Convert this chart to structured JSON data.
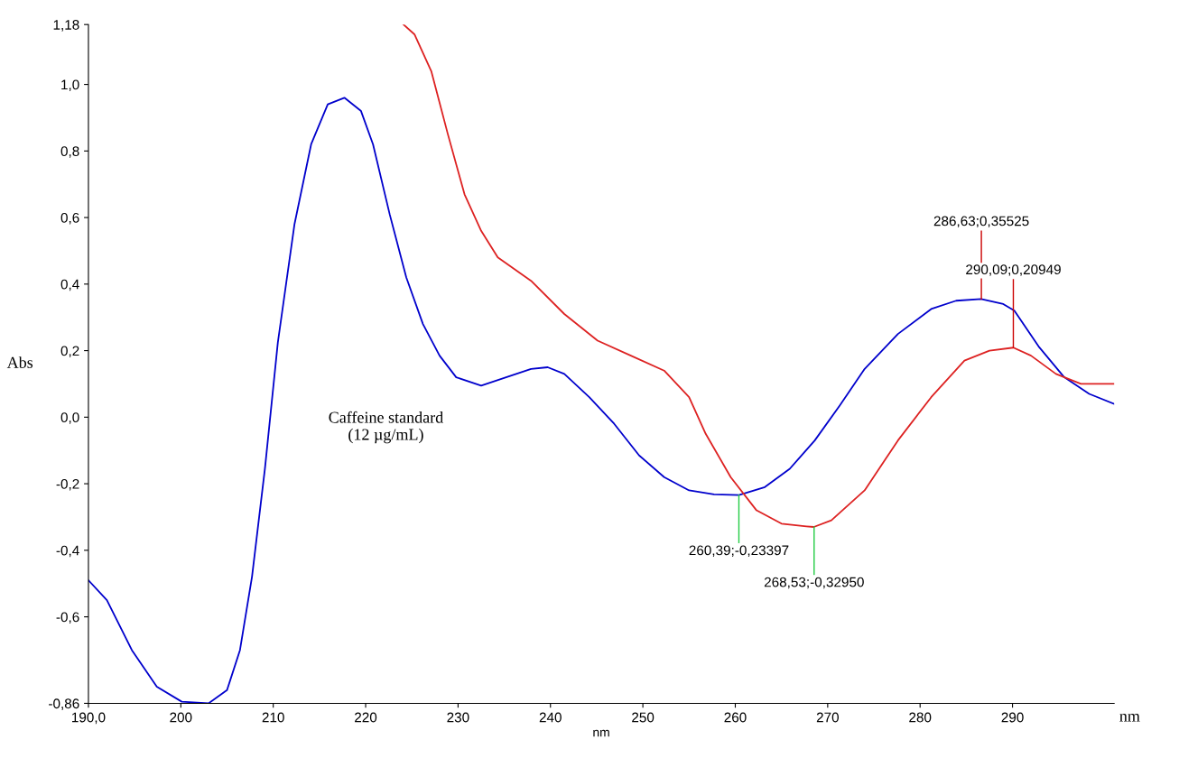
{
  "chart_data": {
    "type": "line",
    "xlabel": "nm",
    "ylabel": "Abs",
    "xlim": [
      190,
      301
    ],
    "ylim": [
      -0.86,
      1.18
    ],
    "xticks": [
      {
        "value": 190,
        "label": "190,0"
      },
      200,
      210,
      220,
      230,
      240,
      250,
      260,
      270,
      280,
      290
    ],
    "yticks": [
      {
        "value": -0.86,
        "label": "-0,86"
      },
      {
        "value": -0.6,
        "label": "-0,6"
      },
      {
        "value": -0.4,
        "label": "-0,4"
      },
      {
        "value": -0.2,
        "label": "-0,2"
      },
      {
        "value": 0.0,
        "label": "0,0"
      },
      {
        "value": 0.2,
        "label": "0,2"
      },
      {
        "value": 0.4,
        "label": "0,4"
      },
      {
        "value": 0.6,
        "label": "0,6"
      },
      {
        "value": 0.8,
        "label": "0,8"
      },
      {
        "value": 1.0,
        "label": "1,0"
      },
      {
        "value": 1.18,
        "label": "1,18"
      }
    ],
    "grid": false,
    "legend": false,
    "series": [
      {
        "name": "Caffeine standard\n(12 µg/mL)",
        "color": "#0000cc",
        "x": [
          190,
          192,
          194.7,
          197.4,
          200.1,
          203,
          205,
          206.4,
          207.7,
          209.1,
          210.5,
          212.3,
          214.1,
          215.9,
          217.7,
          219.5,
          220.8,
          222.6,
          224.4,
          226.2,
          228,
          229.8,
          232.5,
          235.2,
          237.9,
          239.7,
          241.5,
          244.2,
          246.9,
          249.6,
          252.3,
          255,
          257.7,
          260.4,
          263.2,
          265.9,
          268.6,
          271.3,
          274,
          277.6,
          281.2,
          283.9,
          286.6,
          289,
          290.2,
          292.9,
          295.6,
          298.3,
          301
        ],
        "values": [
          -0.49,
          -0.55,
          -0.7,
          -0.81,
          -0.855,
          -0.86,
          -0.82,
          -0.7,
          -0.48,
          -0.155,
          0.225,
          0.58,
          0.82,
          0.94,
          0.96,
          0.92,
          0.82,
          0.61,
          0.42,
          0.28,
          0.185,
          0.12,
          0.095,
          0.12,
          0.145,
          0.15,
          0.13,
          0.06,
          -0.02,
          -0.115,
          -0.18,
          -0.22,
          -0.232,
          -0.234,
          -0.21,
          -0.155,
          -0.07,
          0.035,
          0.145,
          0.25,
          0.325,
          0.35,
          0.355,
          0.34,
          0.32,
          0.21,
          0.12,
          0.07,
          0.04
        ]
      },
      {
        "color": "#dd2222",
        "x": [
          224.1,
          225.3,
          227.1,
          228.9,
          230.7,
          232.5,
          234.3,
          237.9,
          241.5,
          245.1,
          248.7,
          252.3,
          255,
          256.8,
          259.5,
          262.3,
          265,
          267.7,
          268.5,
          270.4,
          274,
          277.6,
          281.2,
          284.8,
          287.5,
          290.1,
          292,
          294.7,
          297.4,
          301
        ],
        "values": [
          1.18,
          1.15,
          1.04,
          0.85,
          0.67,
          0.56,
          0.48,
          0.41,
          0.31,
          0.23,
          0.185,
          0.14,
          0.06,
          -0.05,
          -0.18,
          -0.28,
          -0.32,
          -0.328,
          -0.33,
          -0.31,
          -0.22,
          -0.07,
          0.06,
          0.17,
          0.2,
          0.209,
          0.185,
          0.13,
          0.1,
          0.1
        ]
      }
    ],
    "annotations": [
      {
        "text": "286,63;0,35525",
        "x": 286.63,
        "y": 0.35525
      },
      {
        "text": "290,09;0,20949",
        "x": 290.09,
        "y": 0.20949
      },
      {
        "text": "260,39;-0,23397",
        "x": 260.39,
        "y": -0.23397
      },
      {
        "text": "268,53;-0,32950",
        "x": 268.53,
        "y": -0.3295
      },
      "nm"
    ]
  }
}
